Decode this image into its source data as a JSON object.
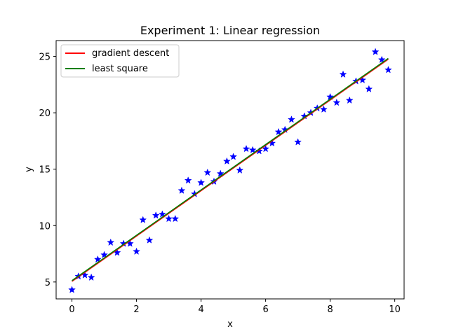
{
  "chart_data": {
    "type": "scatter",
    "title": "Experiment 1: Linear regression",
    "xlabel": "x",
    "ylabel": "y",
    "xlim": [
      -0.49,
      10.29
    ],
    "ylim": [
      3.5,
      26.4
    ],
    "xticks": [
      0,
      2,
      4,
      6,
      8,
      10
    ],
    "yticks": [
      5,
      10,
      15,
      20,
      25
    ],
    "xtick_labels": [
      "0",
      "2",
      "4",
      "6",
      "8",
      "10"
    ],
    "ytick_labels": [
      "5",
      "10",
      "15",
      "20",
      "25"
    ],
    "grid": false,
    "legend": {
      "position": "top-left",
      "entries": [
        "gradient descent",
        "least square"
      ]
    },
    "series": [
      {
        "kind": "scatter",
        "color": "#0000ff",
        "marker": "star",
        "x": [
          0.0,
          0.2,
          0.4,
          0.6,
          0.8,
          1.0,
          1.2,
          1.4,
          1.6,
          1.8,
          2.0,
          2.2,
          2.4,
          2.6,
          2.8,
          3.0,
          3.2,
          3.4,
          3.6,
          3.8,
          4.0,
          4.2,
          4.4,
          4.6,
          4.8,
          5.0,
          5.2,
          5.4,
          5.6,
          5.8,
          6.0,
          6.2,
          6.4,
          6.6,
          6.8,
          7.0,
          7.2,
          7.4,
          7.6,
          7.8,
          8.0,
          8.2,
          8.4,
          8.6,
          8.8,
          9.0,
          9.2,
          9.4,
          9.6,
          9.8
        ],
        "y": [
          4.3,
          5.5,
          5.6,
          5.4,
          7.0,
          7.4,
          8.5,
          7.6,
          8.4,
          8.4,
          7.7,
          10.5,
          8.7,
          10.9,
          11.0,
          10.6,
          10.6,
          13.1,
          14.0,
          12.8,
          13.8,
          14.7,
          13.9,
          14.6,
          15.7,
          16.1,
          14.9,
          16.8,
          16.7,
          16.6,
          16.8,
          17.3,
          18.3,
          18.5,
          19.4,
          17.4,
          19.7,
          20.0,
          20.4,
          20.3,
          21.4,
          20.9,
          23.4,
          21.1,
          22.8,
          22.9,
          22.1,
          25.4,
          24.7,
          23.8
        ]
      },
      {
        "kind": "line",
        "name": "gradient descent",
        "color": "#ff0000",
        "x": [
          0.0,
          9.8
        ],
        "y": [
          5.05,
          24.75
        ]
      },
      {
        "kind": "line",
        "name": "least square",
        "color": "#008000",
        "x": [
          0.0,
          9.8
        ],
        "y": [
          5.12,
          24.82
        ]
      }
    ]
  }
}
